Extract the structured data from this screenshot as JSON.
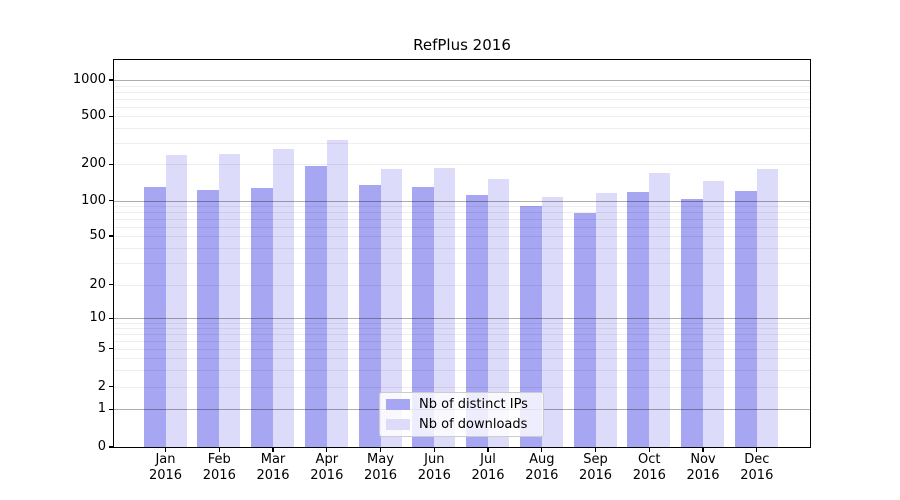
{
  "chart_data": {
    "type": "bar",
    "title": "RefPlus 2016",
    "categories": [
      "Jan",
      "Feb",
      "Mar",
      "Apr",
      "May",
      "Jun",
      "Jul",
      "Aug",
      "Sep",
      "Oct",
      "Nov",
      "Dec"
    ],
    "category_year": "2016",
    "series": [
      {
        "name": "Nb of distinct IPs",
        "color": "#a6a6f2",
        "values": [
          129,
          123,
          127,
          195,
          136,
          129,
          112,
          90,
          78,
          119,
          104,
          121
        ]
      },
      {
        "name": "Nb of downloads",
        "color": "#dcdcfa",
        "values": [
          240,
          243,
          267,
          316,
          182,
          185,
          150,
          107,
          115,
          170,
          146,
          183
        ]
      }
    ],
    "yscale": "log (linear segment between 0 and 1)",
    "y_ticks": [
      1000,
      500,
      200,
      100,
      50,
      20,
      10,
      5,
      2,
      1,
      0
    ],
    "y_minor_gridlines": [
      900,
      800,
      700,
      600,
      400,
      300,
      90,
      80,
      70,
      60,
      40,
      30,
      9,
      8,
      7,
      6,
      4,
      3
    ],
    "y_pow10_gridlines": [
      1000,
      100,
      10,
      1
    ],
    "ylim": [
      0,
      1450
    ],
    "xlabel": "",
    "ylabel": "",
    "grid": "on (horizontal, minor + major; darker lines at powers of 10)",
    "legend_position": "lower center inside plot"
  }
}
